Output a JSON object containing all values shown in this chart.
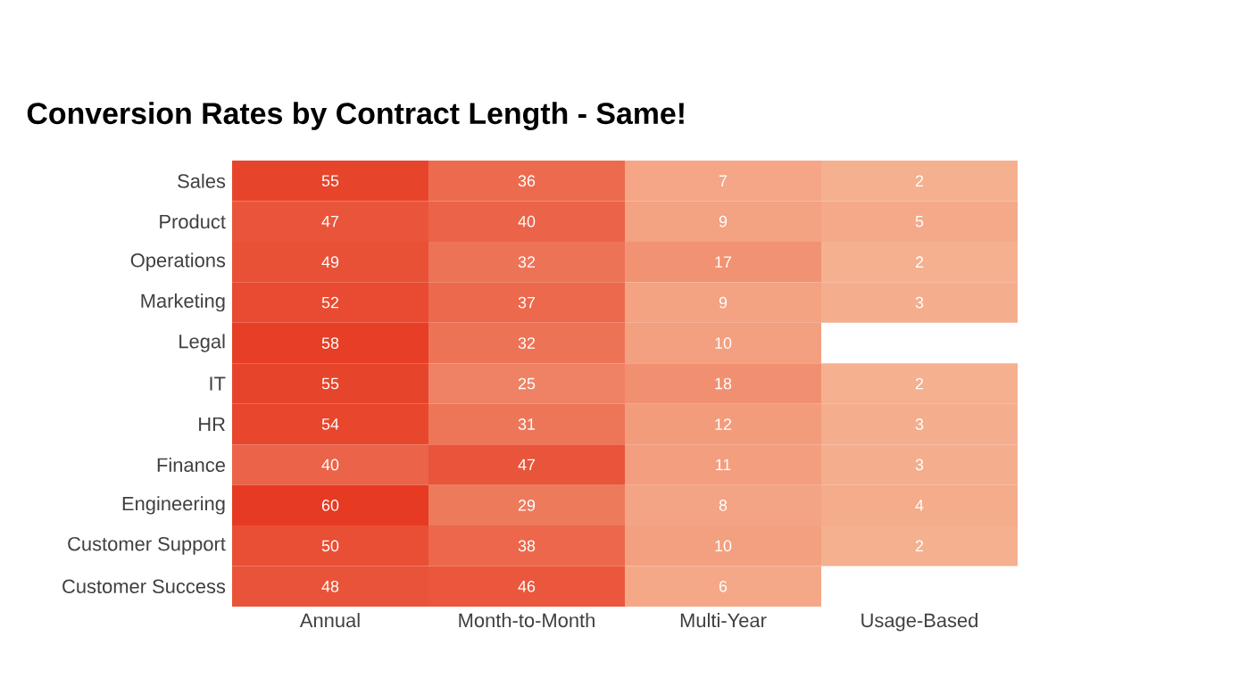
{
  "chart_data": {
    "type": "heatmap",
    "title": "Conversion Rates by Contract Length - Same!",
    "categories": [
      "Annual",
      "Month-to-Month",
      "Multi-Year",
      "Usage-Based"
    ],
    "y_categories": [
      "Sales",
      "Product",
      "Operations",
      "Marketing",
      "Legal",
      "IT",
      "HR",
      "Finance",
      "Engineering",
      "Customer Support",
      "Customer Success"
    ],
    "cells": [
      [
        55,
        36,
        7,
        2
      ],
      [
        47,
        40,
        9,
        5
      ],
      [
        49,
        32,
        17,
        2
      ],
      [
        52,
        37,
        9,
        3
      ],
      [
        58,
        32,
        10,
        null
      ],
      [
        55,
        25,
        18,
        2
      ],
      [
        54,
        31,
        12,
        3
      ],
      [
        40,
        47,
        11,
        3
      ],
      [
        60,
        29,
        8,
        4
      ],
      [
        50,
        38,
        10,
        2
      ],
      [
        48,
        46,
        6,
        null
      ]
    ],
    "data_labels": true
  }
}
